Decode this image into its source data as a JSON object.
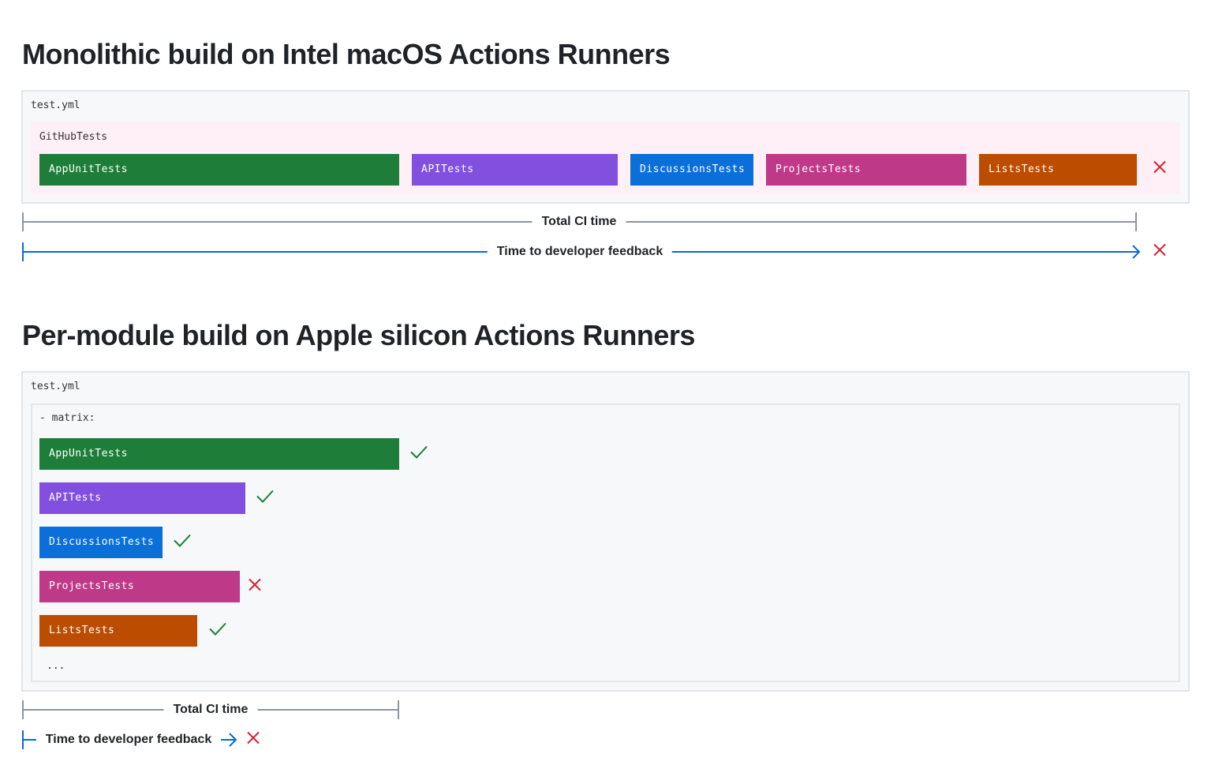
{
  "section1": {
    "title": "Monolithic build on Intel macOS Actions Runners",
    "file": "test.yml",
    "group": "GitHubTests",
    "jobs": [
      {
        "label": "AppUnitTests",
        "color": "#1e7e39"
      },
      {
        "label": "APITests",
        "color": "#8250df"
      },
      {
        "label": "DiscussionsTests",
        "color": "#0a6fd9"
      },
      {
        "label": "ProjectsTests",
        "color": "#bf3989"
      },
      {
        "label": "ListsTests",
        "color": "#bc4c00"
      }
    ],
    "group_status": "fail",
    "total_ci_label": "Total CI time",
    "feedback_label": "Time to developer feedback",
    "feedback_status": "fail"
  },
  "section2": {
    "title": "Per-module build on Apple silicon Actions Runners",
    "file": "test.yml",
    "matrix_label": "- matrix:",
    "jobs": [
      {
        "label": "AppUnitTests",
        "color": "#1e7e39",
        "status": "pass"
      },
      {
        "label": "APITests",
        "color": "#8250df",
        "status": "pass"
      },
      {
        "label": "DiscussionsTests",
        "color": "#0a6fd9",
        "status": "pass"
      },
      {
        "label": "ProjectsTests",
        "color": "#bf3989",
        "status": "fail"
      },
      {
        "label": "ListsTests",
        "color": "#bc4c00",
        "status": "pass"
      }
    ],
    "ellipsis": "...",
    "total_ci_label": "Total CI time",
    "feedback_label": "Time to developer feedback",
    "feedback_status": "fail"
  },
  "colors": {
    "pass": "#1a7f37",
    "fail": "#d1242f",
    "timeline": "#8c959f",
    "feedback": "#0969da",
    "group_bg": "#ffeff7"
  }
}
